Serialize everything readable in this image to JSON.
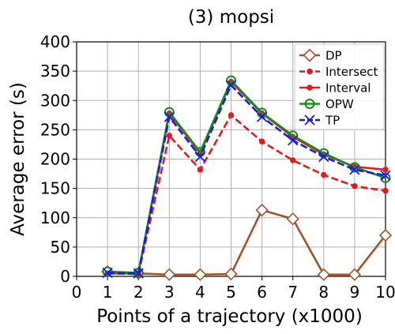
{
  "chart_data": {
    "type": "line",
    "title": "(3) mopsi",
    "xlabel": "Points of a trajectory (x1000)",
    "ylabel": "Average error (s)",
    "xlim": [
      0,
      10
    ],
    "ylim": [
      0,
      400
    ],
    "xticks": [
      "0",
      "1",
      "2",
      "3",
      "4",
      "5",
      "6",
      "7",
      "8",
      "9",
      "10"
    ],
    "yticks": [
      "0",
      "50",
      "100",
      "150",
      "200",
      "250",
      "300",
      "350",
      "400"
    ],
    "grid": true,
    "legend_position": "top-right",
    "x": [
      1,
      2,
      3,
      4,
      5,
      6,
      7,
      8,
      9,
      10
    ],
    "series": [
      {
        "name": "DP",
        "color": "#a0522d",
        "marker": "diamond-open",
        "dash": "solid",
        "values": [
          8,
          5,
          3,
          3,
          4,
          113,
          98,
          3,
          3,
          70
        ]
      },
      {
        "name": "Intersect",
        "color": "#e31a1c",
        "marker": "dot",
        "dash": "dashed",
        "values": [
          5,
          4,
          240,
          182,
          275,
          230,
          198,
          173,
          154,
          146
        ]
      },
      {
        "name": "Interval",
        "color": "#e31a1c",
        "marker": "dot",
        "dash": "solid",
        "values": [
          5,
          5,
          278,
          210,
          332,
          278,
          238,
          208,
          187,
          182
        ]
      },
      {
        "name": "OPW",
        "color": "#1a8a1a",
        "marker": "circle-open",
        "dash": "solid",
        "values": [
          8,
          6,
          280,
          212,
          334,
          279,
          240,
          210,
          186,
          168
        ]
      },
      {
        "name": "TP",
        "color": "#1a1ae0",
        "marker": "x",
        "dash": "dashed",
        "values": [
          6,
          5,
          272,
          204,
          326,
          272,
          232,
          204,
          182,
          172
        ]
      }
    ]
  }
}
